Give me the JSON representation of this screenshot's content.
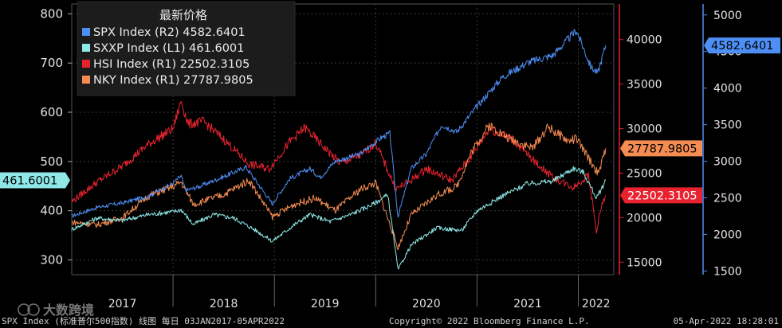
{
  "chart_data": {
    "type": "line",
    "legend": {
      "title": "最新价格",
      "placement": "top-left"
    },
    "series": [
      {
        "name": "SPX Index  (R2)  4582.6401",
        "axis": "R2",
        "color": "#4e8ff5",
        "values": [
          [
            2017.0,
            2250
          ],
          [
            2017.25,
            2370
          ],
          [
            2017.5,
            2430
          ],
          [
            2017.75,
            2520
          ],
          [
            2018.0,
            2700
          ],
          [
            2018.08,
            2800
          ],
          [
            2018.12,
            2600
          ],
          [
            2018.25,
            2650
          ],
          [
            2018.5,
            2790
          ],
          [
            2018.72,
            2920
          ],
          [
            2018.98,
            2420
          ],
          [
            2019.15,
            2760
          ],
          [
            2019.35,
            2900
          ],
          [
            2019.45,
            2780
          ],
          [
            2019.6,
            3000
          ],
          [
            2019.85,
            3100
          ],
          [
            2020.05,
            3320
          ],
          [
            2020.14,
            3380
          ],
          [
            2020.22,
            2240
          ],
          [
            2020.35,
            2900
          ],
          [
            2020.5,
            3100
          ],
          [
            2020.65,
            3500
          ],
          [
            2020.8,
            3400
          ],
          [
            2021.0,
            3750
          ],
          [
            2021.25,
            4150
          ],
          [
            2021.5,
            4350
          ],
          [
            2021.75,
            4450
          ],
          [
            2021.98,
            4790
          ],
          [
            2022.05,
            4550
          ],
          [
            2022.12,
            4300
          ],
          [
            2022.19,
            4200
          ],
          [
            2022.27,
            4582.6401
          ]
        ]
      },
      {
        "name": "SXXP Index  (L1) 461.6001",
        "axis": "L1",
        "color": "#8fe8e8",
        "values": [
          [
            2017.0,
            362
          ],
          [
            2017.25,
            385
          ],
          [
            2017.5,
            380
          ],
          [
            2017.75,
            392
          ],
          [
            2018.0,
            398
          ],
          [
            2018.08,
            402
          ],
          [
            2018.2,
            372
          ],
          [
            2018.4,
            392
          ],
          [
            2018.6,
            385
          ],
          [
            2018.8,
            362
          ],
          [
            2018.98,
            338
          ],
          [
            2019.2,
            372
          ],
          [
            2019.35,
            392
          ],
          [
            2019.55,
            378
          ],
          [
            2019.75,
            392
          ],
          [
            2019.98,
            414
          ],
          [
            2020.12,
            432
          ],
          [
            2020.22,
            280
          ],
          [
            2020.35,
            330
          ],
          [
            2020.6,
            365
          ],
          [
            2020.85,
            360
          ],
          [
            2021.0,
            400
          ],
          [
            2021.25,
            430
          ],
          [
            2021.5,
            455
          ],
          [
            2021.75,
            460
          ],
          [
            2021.95,
            486
          ],
          [
            2022.05,
            478
          ],
          [
            2022.18,
            425
          ],
          [
            2022.27,
            461.6001
          ]
        ]
      },
      {
        "name": "HSI Index  (R1)  22502.3105",
        "axis": "R1",
        "color": "#e8232f",
        "values": [
          [
            2017.0,
            21800
          ],
          [
            2017.25,
            24000
          ],
          [
            2017.5,
            25800
          ],
          [
            2017.75,
            28200
          ],
          [
            2018.0,
            30000
          ],
          [
            2018.08,
            33100
          ],
          [
            2018.15,
            30500
          ],
          [
            2018.3,
            30800
          ],
          [
            2018.5,
            28800
          ],
          [
            2018.75,
            26000
          ],
          [
            2018.95,
            25500
          ],
          [
            2019.15,
            28500
          ],
          [
            2019.3,
            30100
          ],
          [
            2019.5,
            27800
          ],
          [
            2019.65,
            26100
          ],
          [
            2019.85,
            27000
          ],
          [
            2020.0,
            28400
          ],
          [
            2020.2,
            23200
          ],
          [
            2020.35,
            24200
          ],
          [
            2020.5,
            25500
          ],
          [
            2020.75,
            24200
          ],
          [
            2020.95,
            27000
          ],
          [
            2021.12,
            30000
          ],
          [
            2021.35,
            28800
          ],
          [
            2021.55,
            26500
          ],
          [
            2021.75,
            24500
          ],
          [
            2021.95,
            23400
          ],
          [
            2022.1,
            24800
          ],
          [
            2022.18,
            18400
          ],
          [
            2022.22,
            21000
          ],
          [
            2022.27,
            22502.3105
          ]
        ]
      },
      {
        "name": "NKY Index  (R1)  27787.9805",
        "axis": "R1",
        "color": "#f58c52",
        "values": [
          [
            2017.0,
            19500
          ],
          [
            2017.25,
            19200
          ],
          [
            2017.5,
            20000
          ],
          [
            2017.75,
            22400
          ],
          [
            2018.0,
            23500
          ],
          [
            2018.08,
            24000
          ],
          [
            2018.2,
            21500
          ],
          [
            2018.5,
            22600
          ],
          [
            2018.75,
            24200
          ],
          [
            2018.98,
            20100
          ],
          [
            2019.2,
            21500
          ],
          [
            2019.4,
            22200
          ],
          [
            2019.6,
            20800
          ],
          [
            2019.85,
            23200
          ],
          [
            2020.0,
            23900
          ],
          [
            2020.22,
            16600
          ],
          [
            2020.35,
            20300
          ],
          [
            2020.6,
            22500
          ],
          [
            2020.8,
            23500
          ],
          [
            2020.95,
            27500
          ],
          [
            2021.12,
            30400
          ],
          [
            2021.3,
            29000
          ],
          [
            2021.55,
            27800
          ],
          [
            2021.7,
            30200
          ],
          [
            2021.9,
            28600
          ],
          [
            2021.98,
            28900
          ],
          [
            2022.1,
            26700
          ],
          [
            2022.2,
            24900
          ],
          [
            2022.27,
            27787.9805
          ]
        ]
      }
    ],
    "x_ticks": [
      "2017",
      "2018",
      "2019",
      "2020",
      "2021",
      "2022"
    ],
    "xlim": [
      2017.0,
      2022.35
    ],
    "axes": {
      "L1": {
        "ticks": [
          "300",
          "400",
          "500",
          "600",
          "700",
          "800"
        ],
        "range": [
          270,
          820
        ],
        "last_value": "461.6001"
      },
      "R1": {
        "ticks": [
          "15000",
          "20000",
          "25000",
          "30000",
          "35000",
          "40000"
        ],
        "range": [
          13600,
          44000
        ],
        "last_values": [
          "27787.9805",
          "22502.3105"
        ]
      },
      "R2": {
        "ticks": [
          "1500",
          "2000",
          "2500",
          "3000",
          "3500",
          "4000",
          "4500",
          "5000"
        ],
        "range": [
          1450,
          5150
        ],
        "last_value": "4582.6401"
      }
    },
    "grid": true
  },
  "footer": {
    "description": "SPX Index (标准普尔500指数) 线图   每日 03JAN2017-05APR2022",
    "copyright": "Copyright© 2022 Bloomberg Finance L.P.",
    "timestamp": "05-Apr-2022 18:28:01"
  },
  "watermark": "大数跨境",
  "colors": {
    "background": "#000000",
    "grid": "#3a3a3a",
    "axis_r1": "#e8232f",
    "axis_r2": "#4e8ff5",
    "axis_l1": "#8fe8e8"
  }
}
